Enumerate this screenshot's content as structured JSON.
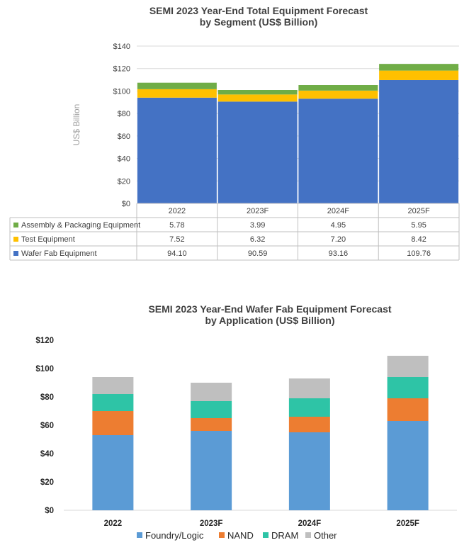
{
  "chart_data": [
    {
      "type": "bar",
      "stacked": true,
      "title": "SEMI 2023 Year-End Total Equipment Forecast\nby Segment (US$ Billion)",
      "ylabel": "US$ Billion",
      "ylim": [
        0,
        140
      ],
      "yticks": [
        "$0",
        "$20",
        "$40",
        "$60",
        "$80",
        "$100",
        "$120",
        "$140"
      ],
      "grid": true,
      "legend": "data-table",
      "categories": [
        "2022",
        "2023F",
        "2024F",
        "2025F"
      ],
      "series": [
        {
          "name": "Wafer Fab Equipment",
          "color": "#4472c4",
          "values": [
            94.1,
            90.59,
            93.16,
            109.76
          ],
          "labels": [
            "94.10",
            "90.59",
            "93.16",
            "109.76"
          ]
        },
        {
          "name": "Test Equipment",
          "color": "#ffc000",
          "values": [
            7.52,
            6.32,
            7.2,
            8.42
          ],
          "labels": [
            "7.52",
            "6.32",
            "7.20",
            "8.42"
          ]
        },
        {
          "name": "Assembly & Packaging Equipment",
          "color": "#70ad47",
          "values": [
            5.78,
            3.99,
            4.95,
            5.95
          ],
          "labels": [
            "5.78",
            "3.99",
            "4.95",
            "5.95"
          ]
        }
      ]
    },
    {
      "type": "bar",
      "stacked": true,
      "title": "SEMI 2023 Year-End Wafer Fab Equipment Forecast\nby Application (US$ Billion)",
      "ylim": [
        0,
        120
      ],
      "yticks": [
        "$0",
        "$20",
        "$40",
        "$60",
        "$80",
        "$100",
        "$120"
      ],
      "grid": false,
      "legend": "bottom",
      "categories": [
        "2022",
        "2023F",
        "2024F",
        "2025F"
      ],
      "series": [
        {
          "name": "Foundry/Logic",
          "color": "#5b9bd5",
          "values": [
            53,
            56,
            55,
            63
          ]
        },
        {
          "name": "NAND",
          "color": "#ed7d31",
          "values": [
            17,
            9,
            11,
            16
          ]
        },
        {
          "name": "DRAM",
          "color": "#2ec4a6",
          "values": [
            12,
            12,
            13,
            15
          ]
        },
        {
          "name": "Other",
          "color": "#bfbfbf",
          "values": [
            12,
            13,
            14,
            15
          ]
        }
      ]
    }
  ]
}
